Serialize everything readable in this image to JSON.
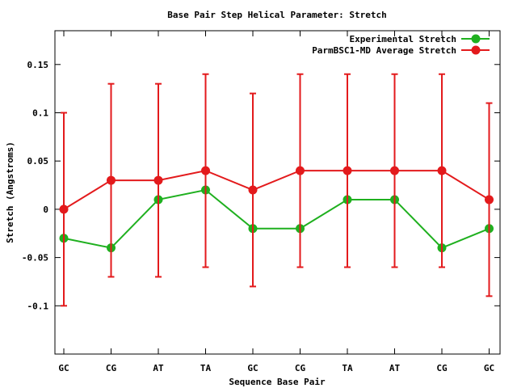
{
  "chart_data": {
    "type": "line",
    "title": "Base Pair Step Helical Parameter: Stretch",
    "xlabel": "Sequence Base Pair",
    "ylabel": "Stretch (Angstroms)",
    "categories": [
      "GC",
      "CG",
      "AT",
      "TA",
      "GC",
      "CG",
      "TA",
      "AT",
      "CG",
      "GC"
    ],
    "ylim": [
      -0.15,
      0.185
    ],
    "yticks": [
      -0.1,
      -0.05,
      0,
      0.05,
      0.1,
      0.15
    ],
    "ytick_labels": [
      "-0.1",
      "-0.05",
      "0",
      "0.05",
      "0.1",
      "0.15"
    ],
    "legend_position": "top-right",
    "grid": false,
    "series": [
      {
        "name": "Experimental Stretch",
        "color": "#1fb01f",
        "values": [
          -0.03,
          -0.04,
          0.01,
          0.02,
          -0.02,
          -0.02,
          0.01,
          0.01,
          -0.04,
          -0.02
        ]
      },
      {
        "name": "ParmBSC1-MD Average Stretch",
        "color": "#e31a1c",
        "values": [
          0.0,
          0.03,
          0.03,
          0.04,
          0.02,
          0.04,
          0.04,
          0.04,
          0.04,
          0.01
        ],
        "error_low": [
          -0.1,
          -0.07,
          -0.07,
          -0.06,
          -0.08,
          -0.06,
          -0.06,
          -0.06,
          -0.06,
          -0.09
        ],
        "error_high": [
          0.1,
          0.13,
          0.13,
          0.14,
          0.12,
          0.14,
          0.14,
          0.14,
          0.14,
          0.11
        ]
      }
    ]
  }
}
